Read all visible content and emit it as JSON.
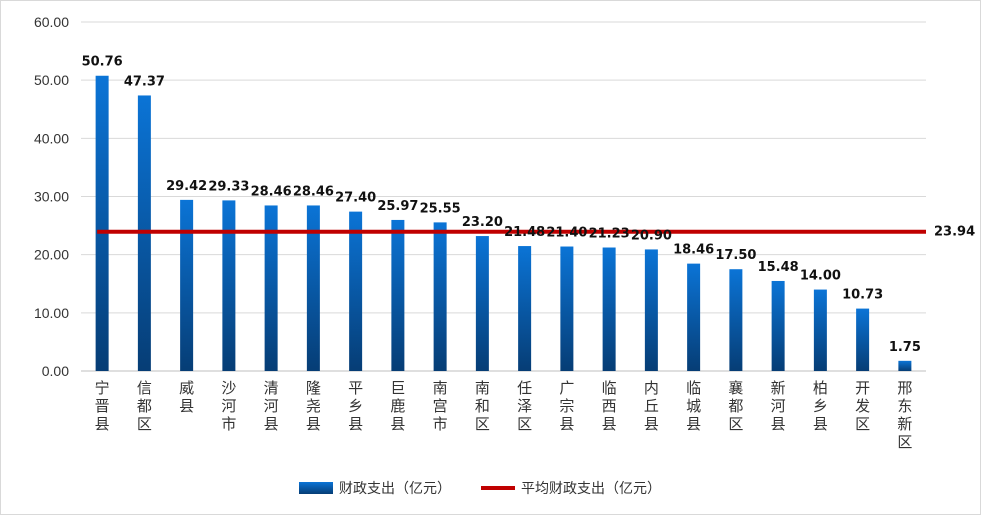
{
  "chart_data": {
    "type": "bar",
    "categories": [
      "宁晋县",
      "信都区",
      "威县",
      "沙河市",
      "清河县",
      "隆尧县",
      "平乡县",
      "巨鹿县",
      "南宫市",
      "南和区",
      "任泽区",
      "广宗县",
      "临西县",
      "内丘县",
      "临城县",
      "襄都区",
      "新河县",
      "柏乡县",
      "开发区",
      "邢东新区"
    ],
    "series": [
      {
        "name": "财政支出（亿元）",
        "type": "bar",
        "values": [
          50.76,
          47.37,
          29.42,
          29.33,
          28.46,
          28.46,
          27.4,
          25.97,
          25.55,
          23.2,
          21.48,
          21.4,
          21.23,
          20.9,
          18.46,
          17.5,
          15.48,
          14.0,
          10.73,
          1.75
        ],
        "labels": [
          "50.76",
          "47.37",
          "29.42",
          "29.33",
          "28.46",
          "28.46",
          "27.40",
          "25.97",
          "25.55",
          "23.20",
          "21.48",
          "21.40",
          "21.23",
          "20.90",
          "18.46",
          "17.50",
          "15.48",
          "14.00",
          "10.73",
          "1.75"
        ],
        "color": "#0a6bc4"
      },
      {
        "name": "平均财政支出（亿元）",
        "type": "line",
        "value": 23.94,
        "label": "23.94",
        "color": "#c00000"
      }
    ],
    "yticks": [
      "0.00",
      "10.00",
      "20.00",
      "30.00",
      "40.00",
      "50.00",
      "60.00"
    ],
    "ylim": [
      0,
      60
    ],
    "grid": true,
    "legend": "bottom"
  }
}
